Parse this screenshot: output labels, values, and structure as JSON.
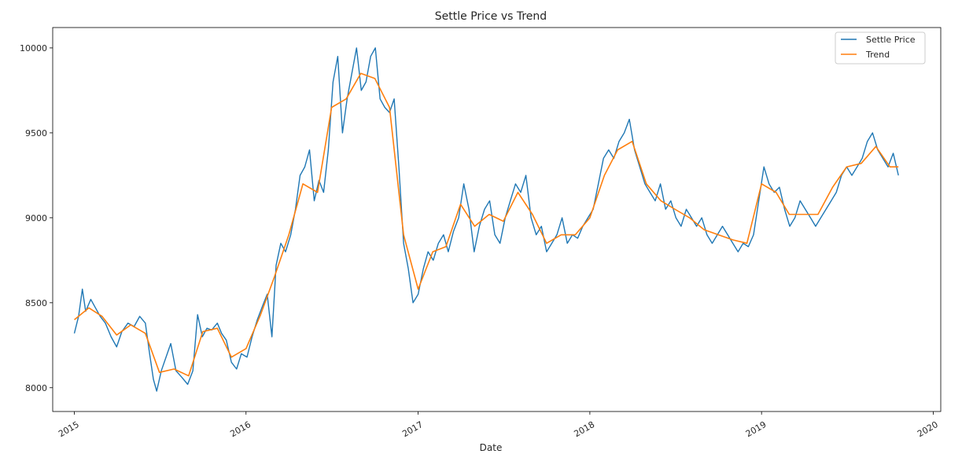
{
  "chart_data": {
    "type": "line",
    "title": "Settle Price vs Trend",
    "xlabel": "Date",
    "ylabel": "",
    "xlim": [
      "2014-11-16",
      "2020-01-17"
    ],
    "ylim": [
      7860,
      10120
    ],
    "x_ticks": [
      "2015",
      "2016",
      "2017",
      "2018",
      "2019",
      "2020"
    ],
    "y_ticks": [
      8000,
      8500,
      9000,
      9500,
      10000
    ],
    "grid": false,
    "legend": "top-right",
    "series": [
      {
        "name": "Settle Price",
        "color": "#1f77b4",
        "points": [
          [
            "2015-01-01",
            8320
          ],
          [
            "2015-01-10",
            8420
          ],
          [
            "2015-01-18",
            8580
          ],
          [
            "2015-01-25",
            8450
          ],
          [
            "2015-02-05",
            8520
          ],
          [
            "2015-02-15",
            8470
          ],
          [
            "2015-02-25",
            8420
          ],
          [
            "2015-03-08",
            8380
          ],
          [
            "2015-03-20",
            8300
          ],
          [
            "2015-04-01",
            8240
          ],
          [
            "2015-04-12",
            8330
          ],
          [
            "2015-04-25",
            8380
          ],
          [
            "2015-05-08",
            8360
          ],
          [
            "2015-05-20",
            8420
          ],
          [
            "2015-06-01",
            8380
          ],
          [
            "2015-06-10",
            8200
          ],
          [
            "2015-06-18",
            8050
          ],
          [
            "2015-06-25",
            7980
          ],
          [
            "2015-07-05",
            8100
          ],
          [
            "2015-07-15",
            8180
          ],
          [
            "2015-07-25",
            8260
          ],
          [
            "2015-08-05",
            8100
          ],
          [
            "2015-08-18",
            8060
          ],
          [
            "2015-08-30",
            8020
          ],
          [
            "2015-09-10",
            8100
          ],
          [
            "2015-09-20",
            8430
          ],
          [
            "2015-09-30",
            8300
          ],
          [
            "2015-10-10",
            8350
          ],
          [
            "2015-10-20",
            8340
          ],
          [
            "2015-11-01",
            8380
          ],
          [
            "2015-11-10",
            8320
          ],
          [
            "2015-11-20",
            8280
          ],
          [
            "2015-12-01",
            8150
          ],
          [
            "2015-12-12",
            8110
          ],
          [
            "2015-12-22",
            8200
          ],
          [
            "2016-01-03",
            8180
          ],
          [
            "2016-01-14",
            8300
          ],
          [
            "2016-01-25",
            8400
          ],
          [
            "2016-02-05",
            8480
          ],
          [
            "2016-02-15",
            8550
          ],
          [
            "2016-02-25",
            8300
          ],
          [
            "2016-03-05",
            8720
          ],
          [
            "2016-03-15",
            8850
          ],
          [
            "2016-03-25",
            8800
          ],
          [
            "2016-04-05",
            8900
          ],
          [
            "2016-04-15",
            9050
          ],
          [
            "2016-04-25",
            9250
          ],
          [
            "2016-05-05",
            9300
          ],
          [
            "2016-05-15",
            9400
          ],
          [
            "2016-05-25",
            9100
          ],
          [
            "2016-06-04",
            9220
          ],
          [
            "2016-06-14",
            9150
          ],
          [
            "2016-06-24",
            9400
          ],
          [
            "2016-07-04",
            9800
          ],
          [
            "2016-07-14",
            9950
          ],
          [
            "2016-07-24",
            9500
          ],
          [
            "2016-08-03",
            9700
          ],
          [
            "2016-08-13",
            9850
          ],
          [
            "2016-08-23",
            10000
          ],
          [
            "2016-09-02",
            9750
          ],
          [
            "2016-09-12",
            9800
          ],
          [
            "2016-09-22",
            9950
          ],
          [
            "2016-10-02",
            10000
          ],
          [
            "2016-10-12",
            9700
          ],
          [
            "2016-10-22",
            9650
          ],
          [
            "2016-11-01",
            9620
          ],
          [
            "2016-11-11",
            9700
          ],
          [
            "2016-11-21",
            9300
          ],
          [
            "2016-12-01",
            8850
          ],
          [
            "2016-12-11",
            8700
          ],
          [
            "2016-12-21",
            8500
          ],
          [
            "2017-01-01",
            8550
          ],
          [
            "2017-01-12",
            8700
          ],
          [
            "2017-01-22",
            8800
          ],
          [
            "2017-02-02",
            8750
          ],
          [
            "2017-02-13",
            8850
          ],
          [
            "2017-02-24",
            8900
          ],
          [
            "2017-03-06",
            8800
          ],
          [
            "2017-03-17",
            8920
          ],
          [
            "2017-03-28",
            9000
          ],
          [
            "2017-04-08",
            9200
          ],
          [
            "2017-04-19",
            9050
          ],
          [
            "2017-04-30",
            8800
          ],
          [
            "2017-05-11",
            8950
          ],
          [
            "2017-05-22",
            9050
          ],
          [
            "2017-06-02",
            9100
          ],
          [
            "2017-06-13",
            8900
          ],
          [
            "2017-06-24",
            8850
          ],
          [
            "2017-07-05",
            9000
          ],
          [
            "2017-07-16",
            9100
          ],
          [
            "2017-07-27",
            9200
          ],
          [
            "2017-08-07",
            9150
          ],
          [
            "2017-08-18",
            9250
          ],
          [
            "2017-08-29",
            9000
          ],
          [
            "2017-09-09",
            8900
          ],
          [
            "2017-09-20",
            8950
          ],
          [
            "2017-10-01",
            8800
          ],
          [
            "2017-10-12",
            8850
          ],
          [
            "2017-10-23",
            8900
          ],
          [
            "2017-11-03",
            9000
          ],
          [
            "2017-11-14",
            8850
          ],
          [
            "2017-11-25",
            8900
          ],
          [
            "2017-12-06",
            8880
          ],
          [
            "2017-12-17",
            8950
          ],
          [
            "2017-12-28",
            9000
          ],
          [
            "2018-01-08",
            9050
          ],
          [
            "2018-01-19",
            9200
          ],
          [
            "2018-01-30",
            9350
          ],
          [
            "2018-02-10",
            9400
          ],
          [
            "2018-02-21",
            9350
          ],
          [
            "2018-03-04",
            9450
          ],
          [
            "2018-03-15",
            9500
          ],
          [
            "2018-03-26",
            9580
          ],
          [
            "2018-04-06",
            9400
          ],
          [
            "2018-04-17",
            9300
          ],
          [
            "2018-04-28",
            9200
          ],
          [
            "2018-05-09",
            9150
          ],
          [
            "2018-05-20",
            9100
          ],
          [
            "2018-05-31",
            9200
          ],
          [
            "2018-06-11",
            9050
          ],
          [
            "2018-06-22",
            9100
          ],
          [
            "2018-07-03",
            9000
          ],
          [
            "2018-07-14",
            8950
          ],
          [
            "2018-07-25",
            9050
          ],
          [
            "2018-08-05",
            9000
          ],
          [
            "2018-08-16",
            8950
          ],
          [
            "2018-08-27",
            9000
          ],
          [
            "2018-09-07",
            8900
          ],
          [
            "2018-09-18",
            8850
          ],
          [
            "2018-09-29",
            8900
          ],
          [
            "2018-10-10",
            8950
          ],
          [
            "2018-10-21",
            8900
          ],
          [
            "2018-11-01",
            8850
          ],
          [
            "2018-11-12",
            8800
          ],
          [
            "2018-11-23",
            8850
          ],
          [
            "2018-12-04",
            8830
          ],
          [
            "2018-12-15",
            8900
          ],
          [
            "2018-12-26",
            9100
          ],
          [
            "2019-01-06",
            9300
          ],
          [
            "2019-01-17",
            9200
          ],
          [
            "2019-01-28",
            9150
          ],
          [
            "2019-02-08",
            9180
          ],
          [
            "2019-02-19",
            9050
          ],
          [
            "2019-03-02",
            8950
          ],
          [
            "2019-03-13",
            9000
          ],
          [
            "2019-03-24",
            9100
          ],
          [
            "2019-04-04",
            9050
          ],
          [
            "2019-04-15",
            9000
          ],
          [
            "2019-04-26",
            8950
          ],
          [
            "2019-05-07",
            9000
          ],
          [
            "2019-05-18",
            9050
          ],
          [
            "2019-05-29",
            9100
          ],
          [
            "2019-06-09",
            9150
          ],
          [
            "2019-06-20",
            9250
          ],
          [
            "2019-07-01",
            9300
          ],
          [
            "2019-07-12",
            9250
          ],
          [
            "2019-07-23",
            9300
          ],
          [
            "2019-08-03",
            9350
          ],
          [
            "2019-08-14",
            9450
          ],
          [
            "2019-08-25",
            9500
          ],
          [
            "2019-09-05",
            9400
          ],
          [
            "2019-09-16",
            9350
          ],
          [
            "2019-09-27",
            9300
          ],
          [
            "2019-10-08",
            9380
          ],
          [
            "2019-10-19",
            9250
          ]
        ]
      },
      {
        "name": "Trend",
        "color": "#ff7f0e",
        "points": [
          [
            "2015-01-01",
            8400
          ],
          [
            "2015-02-01",
            8470
          ],
          [
            "2015-03-01",
            8420
          ],
          [
            "2015-04-01",
            8310
          ],
          [
            "2015-05-01",
            8370
          ],
          [
            "2015-06-01",
            8320
          ],
          [
            "2015-07-01",
            8090
          ],
          [
            "2015-08-01",
            8110
          ],
          [
            "2015-09-01",
            8070
          ],
          [
            "2015-10-01",
            8330
          ],
          [
            "2015-11-01",
            8350
          ],
          [
            "2015-12-01",
            8180
          ],
          [
            "2016-01-01",
            8230
          ],
          [
            "2016-02-01",
            8430
          ],
          [
            "2016-03-01",
            8650
          ],
          [
            "2016-04-01",
            8900
          ],
          [
            "2016-05-01",
            9200
          ],
          [
            "2016-06-01",
            9150
          ],
          [
            "2016-07-01",
            9650
          ],
          [
            "2016-08-01",
            9700
          ],
          [
            "2016-09-01",
            9850
          ],
          [
            "2016-10-01",
            9820
          ],
          [
            "2016-11-01",
            9650
          ],
          [
            "2016-12-01",
            8900
          ],
          [
            "2017-01-01",
            8580
          ],
          [
            "2017-02-01",
            8800
          ],
          [
            "2017-03-01",
            8830
          ],
          [
            "2017-04-01",
            9080
          ],
          [
            "2017-05-01",
            8950
          ],
          [
            "2017-06-01",
            9020
          ],
          [
            "2017-07-01",
            8980
          ],
          [
            "2017-08-01",
            9150
          ],
          [
            "2017-09-01",
            9020
          ],
          [
            "2017-10-01",
            8850
          ],
          [
            "2017-11-01",
            8900
          ],
          [
            "2017-12-01",
            8900
          ],
          [
            "2018-01-01",
            9000
          ],
          [
            "2018-02-01",
            9250
          ],
          [
            "2018-03-01",
            9400
          ],
          [
            "2018-04-01",
            9450
          ],
          [
            "2018-05-01",
            9200
          ],
          [
            "2018-06-01",
            9100
          ],
          [
            "2018-07-01",
            9050
          ],
          [
            "2018-08-01",
            9000
          ],
          [
            "2018-09-01",
            8930
          ],
          [
            "2018-10-01",
            8900
          ],
          [
            "2018-11-01",
            8870
          ],
          [
            "2018-12-01",
            8850
          ],
          [
            "2019-01-01",
            9200
          ],
          [
            "2019-02-01",
            9150
          ],
          [
            "2019-03-01",
            9020
          ],
          [
            "2019-04-01",
            9020
          ],
          [
            "2019-05-01",
            9020
          ],
          [
            "2019-06-01",
            9180
          ],
          [
            "2019-07-01",
            9300
          ],
          [
            "2019-08-01",
            9320
          ],
          [
            "2019-09-01",
            9420
          ],
          [
            "2019-10-01",
            9300
          ],
          [
            "2019-10-19",
            9300
          ]
        ]
      }
    ]
  }
}
